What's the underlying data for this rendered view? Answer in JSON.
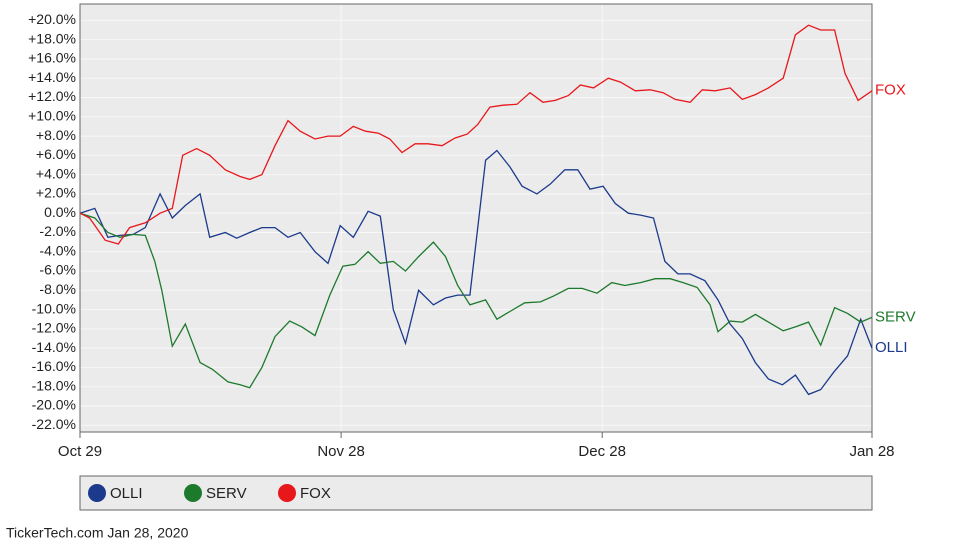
{
  "chart_data": {
    "type": "line",
    "xlim": [
      0,
      91
    ],
    "xticks": [
      {
        "value": 0,
        "label": "Oct 29"
      },
      {
        "value": 30,
        "label": "Nov 28"
      },
      {
        "value": 60,
        "label": "Dec 28"
      },
      {
        "value": 91,
        "label": "Jan 28"
      }
    ],
    "ylim": [
      -22.7,
      21.7
    ],
    "yticks": [
      {
        "value": 20,
        "label": "+20.0%"
      },
      {
        "value": 18,
        "label": "+18.0%"
      },
      {
        "value": 16,
        "label": "+16.0%"
      },
      {
        "value": 14,
        "label": "+14.0%"
      },
      {
        "value": 12,
        "label": "+12.0%"
      },
      {
        "value": 10,
        "label": "+10.0%"
      },
      {
        "value": 8,
        "label": "+8.0%"
      },
      {
        "value": 6,
        "label": "+6.0%"
      },
      {
        "value": 4,
        "label": "+4.0%"
      },
      {
        "value": 2,
        "label": "+2.0%"
      },
      {
        "value": 0,
        "label": "0.0%"
      },
      {
        "value": -2,
        "label": "-2.0%"
      },
      {
        "value": -4,
        "label": "-4.0%"
      },
      {
        "value": -6,
        "label": "-6.0%"
      },
      {
        "value": -8,
        "label": "-8.0%"
      },
      {
        "value": -10,
        "label": "-10.0%"
      },
      {
        "value": -12,
        "label": "-12.0%"
      },
      {
        "value": -14,
        "label": "-14.0%"
      },
      {
        "value": -16,
        "label": "-16.0%"
      },
      {
        "value": -18,
        "label": "-18.0%"
      },
      {
        "value": -20,
        "label": "-20.0%"
      },
      {
        "value": -22,
        "label": "-22.0%"
      }
    ],
    "grid": true,
    "series": [
      {
        "name": "OLLI",
        "color": "#1b3a8c",
        "x": [
          0,
          1.7,
          3.2,
          4.6,
          6.1,
          7.5,
          9.2,
          10.6,
          12.1,
          13.8,
          14.9,
          16.7,
          18.0,
          19.5,
          20.9,
          22.4,
          23.9,
          25.3,
          27.0,
          28.5,
          29.9,
          31.4,
          33.1,
          34.5,
          36.0,
          37.4,
          38.9,
          40.6,
          42.0,
          43.4,
          44.8,
          46.6,
          47.9,
          49.4,
          50.8,
          52.5,
          54.0,
          55.7,
          57.2,
          58.6,
          60.1,
          61.5,
          63.0,
          64.4,
          65.9,
          67.2,
          68.7,
          70.1,
          71.8,
          73.3,
          74.7,
          76.1,
          77.6,
          79.1,
          80.7,
          82.2,
          83.7,
          85.1,
          86.6,
          88.2,
          89.7,
          91.0
        ],
        "values": [
          0,
          0.5,
          -2.5,
          -2.3,
          -2.2,
          -1.5,
          2,
          -0.5,
          0.8,
          2,
          -2.5,
          -2,
          -2.6,
          -2,
          -1.5,
          -1.5,
          -2.5,
          -2,
          -4,
          -5.2,
          -1.3,
          -2.5,
          0.2,
          -0.3,
          -10,
          -13.5,
          -8,
          -9.5,
          -8.8,
          -8.5,
          -8.5,
          5.5,
          6.5,
          4.8,
          2.8,
          2,
          3,
          4.5,
          4.5,
          2.5,
          2.8,
          1,
          0,
          -0.2,
          -0.5,
          -5,
          -6.3,
          -6.3,
          -7,
          -9,
          -11.5,
          -13,
          -15.5,
          -17.2,
          -17.8,
          -16.8,
          -18.8,
          -18.3,
          -16.5,
          -14.8,
          -11,
          -14
        ]
      },
      {
        "name": "SERV",
        "color": "#1d7a2c",
        "x": [
          0,
          1.7,
          3.2,
          4.6,
          6.1,
          7.5,
          8.6,
          9.4,
          10.6,
          12.1,
          13.8,
          15.2,
          17.0,
          18.4,
          19.5,
          20.9,
          22.4,
          24.1,
          25.5,
          27.0,
          28.7,
          30.2,
          31.6,
          33.1,
          34.5,
          36.0,
          37.4,
          38.9,
          40.6,
          42.0,
          43.4,
          44.8,
          46.6,
          47.9,
          49.4,
          51.1,
          52.9,
          54.4,
          56.1,
          57.7,
          59.4,
          61.1,
          62.6,
          64.4,
          66.1,
          67.8,
          69.3,
          70.9,
          72.4,
          73.3,
          74.7,
          76.1,
          77.6,
          79.1,
          80.8,
          82.2,
          83.7,
          85.1,
          86.7,
          88.2,
          89.7,
          91.0
        ],
        "values": [
          0,
          -0.5,
          -2,
          -2.5,
          -2.2,
          -2.3,
          -5,
          -8,
          -13.8,
          -11.5,
          -15.5,
          -16.2,
          -17.5,
          -17.8,
          -18.1,
          -16,
          -12.8,
          -11.2,
          -11.8,
          -12.7,
          -8.5,
          -5.5,
          -5.3,
          -4,
          -5.2,
          -5,
          -6,
          -4.5,
          -3,
          -4.5,
          -7.5,
          -9.5,
          -9,
          -11,
          -10.2,
          -9.3,
          -9.2,
          -8.6,
          -7.8,
          -7.8,
          -8.3,
          -7.2,
          -7.5,
          -7.2,
          -6.8,
          -6.8,
          -7.2,
          -7.7,
          -9.5,
          -12.3,
          -11.2,
          -11.3,
          -10.5,
          -11.3,
          -12.2,
          -11.8,
          -11.3,
          -13.7,
          -9.8,
          -10.4,
          -11.3,
          -10.8
        ]
      },
      {
        "name": "FOX",
        "color": "#e8171b",
        "x": [
          0,
          1.1,
          2.9,
          4.4,
          5.7,
          7.5,
          9.2,
          10.6,
          11.8,
          13.4,
          14.9,
          16.7,
          18.4,
          19.5,
          20.9,
          22.4,
          23.9,
          25.3,
          27.0,
          28.5,
          29.9,
          31.4,
          32.8,
          34.3,
          35.6,
          37.0,
          38.5,
          40.0,
          41.6,
          43.1,
          44.5,
          45.7,
          47.1,
          48.6,
          50.2,
          51.7,
          53.2,
          54.6,
          56.1,
          57.5,
          59.0,
          60.7,
          62.1,
          63.8,
          65.5,
          67.0,
          68.4,
          70.1,
          71.5,
          73.0,
          74.7,
          76.1,
          77.6,
          79.1,
          80.8,
          82.2,
          83.7,
          85.1,
          86.7,
          87.9,
          89.4,
          91.0
        ],
        "values": [
          0,
          -0.5,
          -2.8,
          -3.2,
          -1.5,
          -1,
          0,
          0.5,
          6,
          6.7,
          6,
          4.5,
          3.8,
          3.5,
          4,
          7,
          9.6,
          8.5,
          7.7,
          8,
          8,
          9,
          8.5,
          8.3,
          7.7,
          6.3,
          7.2,
          7.2,
          7,
          7.8,
          8.2,
          9.2,
          11,
          11.2,
          11.3,
          12.5,
          11.5,
          11.7,
          12.2,
          13.3,
          13,
          14,
          13.6,
          12.7,
          12.8,
          12.5,
          11.8,
          11.5,
          12.8,
          12.7,
          13,
          11.8,
          12.3,
          13,
          14,
          18.5,
          19.5,
          19,
          19,
          14.5,
          11.7,
          12.7
        ]
      }
    ],
    "source": "TickerTech.com  Jan 28, 2020"
  }
}
